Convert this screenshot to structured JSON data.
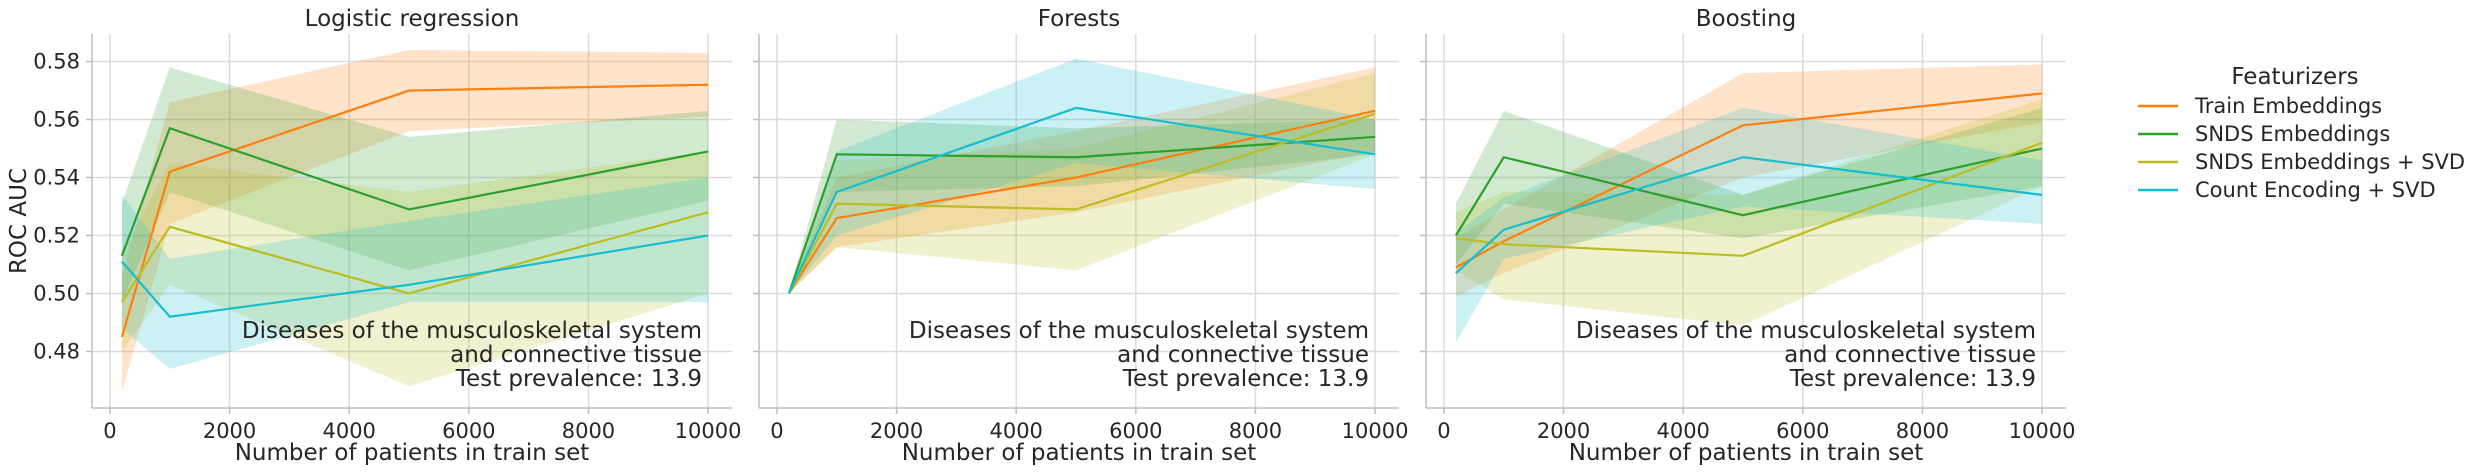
{
  "chart_data": {
    "type": "line",
    "ylabel": "ROC AUC",
    "xlabel": "Number of patients in train set",
    "xlim": [
      -300,
      10400
    ],
    "ylim": [
      0.4605,
      0.5895
    ],
    "xticks": [
      0,
      2000,
      4000,
      6000,
      8000,
      10000
    ],
    "yticks": [
      0.48,
      0.5,
      0.52,
      0.54,
      0.56,
      0.58
    ],
    "xtick_labels": [
      "0",
      "2000",
      "4000",
      "6000",
      "8000",
      "10000"
    ],
    "ytick_labels": [
      "0.48",
      "0.50",
      "0.52",
      "0.54",
      "0.56",
      "0.58"
    ],
    "grid": true,
    "annotation_lines": [
      "Diseases of the musculoskeletal system",
      "and connective tissue",
      "Test prevalence: 13.9"
    ],
    "legend": {
      "title": "Featurizers",
      "placement": "outside-right",
      "entries": [
        {
          "label": "Train Embeddings",
          "color": "#ff7f0e"
        },
        {
          "label": "SNDS Embeddings",
          "color": "#2ca02c"
        },
        {
          "label": "SNDS Embeddings + SVD",
          "color": "#bcbd22"
        },
        {
          "label": "Count Encoding + SVD",
          "color": "#17becf"
        }
      ]
    },
    "panels": [
      {
        "title": "Logistic regression",
        "x": [
          200,
          1000,
          5000,
          10000
        ],
        "series": [
          {
            "color": "#ff7f0e",
            "values": [
              0.485,
              0.542,
              0.57,
              0.572
            ],
            "lower": [
              0.466,
              0.524,
              0.556,
              0.561
            ],
            "upper": [
              0.506,
              0.566,
              0.584,
              0.583
            ]
          },
          {
            "color": "#2ca02c",
            "values": [
              0.513,
              0.557,
              0.529,
              0.549
            ],
            "lower": [
              0.497,
              0.535,
              0.508,
              0.532
            ],
            "upper": [
              0.531,
              0.578,
              0.554,
              0.563
            ]
          },
          {
            "color": "#bcbd22",
            "values": [
              0.497,
              0.523,
              0.5,
              0.528
            ],
            "lower": [
              0.48,
              0.503,
              0.468,
              0.5
            ],
            "upper": [
              0.513,
              0.545,
              0.535,
              0.549
            ]
          },
          {
            "color": "#17becf",
            "values": [
              0.511,
              0.492,
              0.503,
              0.52
            ],
            "lower": [
              0.488,
              0.474,
              0.497,
              0.497
            ],
            "upper": [
              0.534,
              0.512,
              0.525,
              0.54
            ]
          }
        ]
      },
      {
        "title": "Forests",
        "x": [
          200,
          1000,
          5000,
          10000
        ],
        "series": [
          {
            "color": "#ff7f0e",
            "values": [
              0.5,
              0.526,
              0.54,
              0.563
            ],
            "lower": [
              0.5,
              0.516,
              0.528,
              0.549
            ],
            "upper": [
              0.5,
              0.54,
              0.556,
              0.578
            ]
          },
          {
            "color": "#2ca02c",
            "values": [
              0.5,
              0.548,
              0.547,
              0.554
            ],
            "lower": [
              0.5,
              0.535,
              0.537,
              0.548
            ],
            "upper": [
              0.5,
              0.56,
              0.557,
              0.56
            ]
          },
          {
            "color": "#bcbd22",
            "values": [
              0.5,
              0.531,
              0.529,
              0.562
            ],
            "lower": [
              0.5,
              0.516,
              0.508,
              0.548
            ],
            "upper": [
              0.5,
              0.546,
              0.55,
              0.576
            ]
          },
          {
            "color": "#17becf",
            "values": [
              0.5,
              0.535,
              0.564,
              0.548
            ],
            "lower": [
              0.5,
              0.52,
              0.545,
              0.536
            ],
            "upper": [
              0.5,
              0.549,
              0.581,
              0.56
            ]
          }
        ]
      },
      {
        "title": "Boosting",
        "x": [
          200,
          1000,
          5000,
          10000
        ],
        "series": [
          {
            "color": "#ff7f0e",
            "values": [
              0.509,
              0.518,
              0.558,
              0.569
            ],
            "lower": [
              0.499,
              0.507,
              0.54,
              0.559
            ],
            "upper": [
              0.519,
              0.529,
              0.576,
              0.579
            ]
          },
          {
            "color": "#2ca02c",
            "values": [
              0.52,
              0.547,
              0.527,
              0.55
            ],
            "lower": [
              0.51,
              0.531,
              0.519,
              0.537
            ],
            "upper": [
              0.531,
              0.563,
              0.534,
              0.564
            ]
          },
          {
            "color": "#bcbd22",
            "values": [
              0.519,
              0.517,
              0.513,
              0.552
            ],
            "lower": [
              0.508,
              0.498,
              0.489,
              0.537
            ],
            "upper": [
              0.528,
              0.535,
              0.534,
              0.567
            ]
          },
          {
            "color": "#17becf",
            "values": [
              0.507,
              0.522,
              0.547,
              0.534
            ],
            "lower": [
              0.483,
              0.512,
              0.53,
              0.524
            ],
            "upper": [
              0.521,
              0.533,
              0.564,
              0.546
            ]
          }
        ]
      }
    ]
  }
}
